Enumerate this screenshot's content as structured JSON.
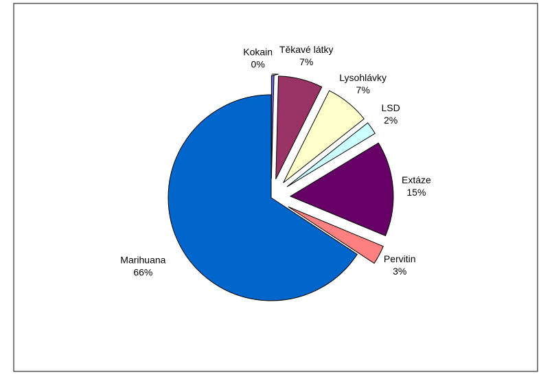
{
  "chart_data": {
    "type": "pie",
    "categories": [
      "Kokain",
      "Těkavé látky",
      "Lysohlávky",
      "LSD",
      "Extáze",
      "Pervitin",
      "Marihuana"
    ],
    "values": [
      0.4,
      7,
      7,
      2,
      15,
      3,
      66
    ],
    "value_labels": [
      "0%",
      "7%",
      "7%",
      "2%",
      "15%",
      "3%",
      "66%"
    ],
    "colors": [
      "#6666cc",
      "#993366",
      "#ffffcc",
      "#ccffff",
      "#660066",
      "#ff8080",
      "#0066cc"
    ],
    "exploded": [
      true,
      true,
      true,
      true,
      true,
      true,
      false
    ]
  }
}
